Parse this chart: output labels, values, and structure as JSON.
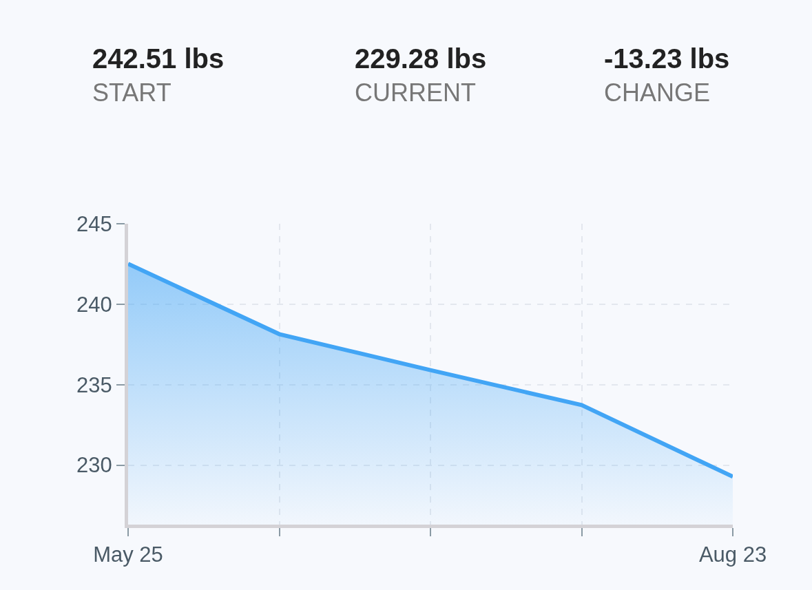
{
  "chart_data": {
    "type": "area",
    "categories": [
      "May 25",
      null,
      null,
      null,
      "Aug 23"
    ],
    "series": [
      {
        "color": "#42a5f5",
        "values": [
          242.51,
          238.14,
          235.9,
          233.73,
          229.28
        ]
      }
    ],
    "ylim": [
      226.3,
      245
    ],
    "yticks": [
      230,
      235,
      240,
      245
    ],
    "grid": true,
    "marker": "none",
    "line_style": "solid",
    "annotations": [
      "242.51 lbs",
      "START",
      "229.28 lbs",
      "CURRENT",
      "-13.23 lbs",
      "CHANGE"
    ]
  }
}
